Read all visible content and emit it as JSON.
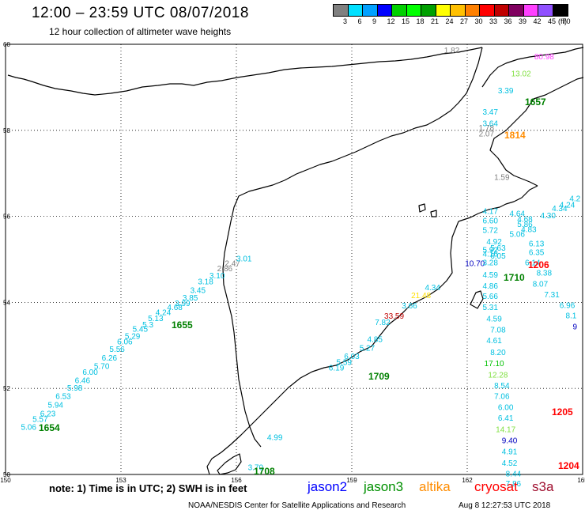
{
  "header": {
    "title": "12:00 – 23:59 UTC 08/07/2018",
    "subtitle": "12 hour collection of altimeter wave heights"
  },
  "colorbar": {
    "colors": [
      "#808080",
      "#00e0ff",
      "#00a0ff",
      "#0000ff",
      "#00d000",
      "#00ff00",
      "#00a000",
      "#ffff00",
      "#ffc000",
      "#ff8000",
      "#ff0000",
      "#c00000",
      "#800060",
      "#ff40ff",
      "#9050ff",
      "#000000"
    ],
    "labels": [
      "3",
      "6",
      "9",
      "12",
      "15",
      "18",
      "21",
      "24",
      "27",
      "30",
      "33",
      "36",
      "39",
      "42",
      "45",
      "70"
    ],
    "unit": "(ft)"
  },
  "map": {
    "lon_range": [
      150,
      165
    ],
    "lat_range": [
      50,
      60
    ],
    "x_ticks": [
      "150",
      "153",
      "156",
      "159",
      "162",
      "165"
    ],
    "y_ticks": [
      "60",
      "58",
      "56",
      "54",
      "52",
      "50"
    ],
    "grid": true
  },
  "tracks": [
    {
      "satellite": "jason3",
      "time": "1654",
      "time_color": "#008000",
      "points": [
        {
          "lon": 150.6,
          "lat": 51.04,
          "v": "5.06",
          "c": "#00c0e0"
        },
        {
          "lon": 150.9,
          "lat": 51.22,
          "v": "5.57",
          "c": "#00c0e0"
        },
        {
          "lon": 151.1,
          "lat": 51.35,
          "v": "6.23",
          "c": "#00c0e0"
        },
        {
          "lon": 151.3,
          "lat": 51.55,
          "v": "5.94",
          "c": "#00c0e0"
        },
        {
          "lon": 151.5,
          "lat": 51.76,
          "v": "6.53",
          "c": "#00c0e0"
        },
        {
          "lon": 151.8,
          "lat": 51.95,
          "v": "5.98",
          "c": "#00c0e0"
        },
        {
          "lon": 152.0,
          "lat": 52.12,
          "v": "6.46",
          "c": "#00c0e0"
        },
        {
          "lon": 152.2,
          "lat": 52.32,
          "v": "6.00",
          "c": "#00c0e0"
        },
        {
          "lon": 152.5,
          "lat": 52.45,
          "v": "5.70",
          "c": "#00c0e0"
        },
        {
          "lon": 152.7,
          "lat": 52.65,
          "v": "6.26",
          "c": "#00c0e0"
        },
        {
          "lon": 152.9,
          "lat": 52.85,
          "v": "5.56",
          "c": "#00c0e0"
        },
        {
          "lon": 153.1,
          "lat": 53.02,
          "v": "6.06",
          "c": "#00c0e0"
        },
        {
          "lon": 153.3,
          "lat": 53.15,
          "v": "5.29",
          "c": "#00c0e0"
        },
        {
          "lon": 153.5,
          "lat": 53.32,
          "v": "5.45",
          "c": "#00c0e0"
        },
        {
          "lon": 153.7,
          "lat": 53.42,
          "v": "5.3",
          "c": "#00c0e0"
        },
        {
          "lon": 153.9,
          "lat": 53.57,
          "v": "5.13",
          "c": "#00c0e0"
        },
        {
          "lon": 154.1,
          "lat": 53.7,
          "v": "4.24",
          "c": "#00c0e0"
        },
        {
          "lon": 154.4,
          "lat": 53.82,
          "v": "4.68",
          "c": "#00c0e0"
        },
        {
          "lon": 154.6,
          "lat": 53.92,
          "v": "3.99",
          "c": "#00c0e0"
        },
        {
          "lon": 154.8,
          "lat": 54.04,
          "v": "3.85",
          "c": "#00c0e0"
        },
        {
          "lon": 155.0,
          "lat": 54.22,
          "v": "3.45",
          "c": "#00c0e0"
        },
        {
          "lon": 155.2,
          "lat": 54.42,
          "v": "3.18",
          "c": "#00c0e0"
        },
        {
          "lon": 155.5,
          "lat": 54.56,
          "v": "3.10",
          "c": "#00c0e0"
        },
        {
          "lon": 155.7,
          "lat": 54.72,
          "v": "2.86",
          "c": "#808080"
        },
        {
          "lon": 155.9,
          "lat": 54.84,
          "v": "2.47",
          "c": "#808080"
        },
        {
          "lon": 156.2,
          "lat": 54.95,
          "v": "3.01",
          "c": "#00c0e0"
        }
      ]
    },
    {
      "satellite": "jason3",
      "time": "1655",
      "time_color": "#008000",
      "points": []
    },
    {
      "satellite": "jason3",
      "time": "1708",
      "time_color": "#008000",
      "points": [
        {
          "lon": 156.5,
          "lat": 50.1,
          "v": "3.70",
          "c": "#00c0e0"
        },
        {
          "lon": 157.0,
          "lat": 50.8,
          "v": "4.99",
          "c": "#00c0e0"
        }
      ]
    },
    {
      "satellite": "jason3",
      "time": "1709",
      "time_color": "#008000",
      "points": [
        {
          "lon": 158.6,
          "lat": 52.42,
          "v": "6.19",
          "c": "#00c0e0"
        },
        {
          "lon": 158.8,
          "lat": 52.55,
          "v": "5.59",
          "c": "#00c0e0"
        },
        {
          "lon": 159.0,
          "lat": 52.68,
          "v": "6.03",
          "c": "#00c0e0"
        },
        {
          "lon": 159.4,
          "lat": 52.88,
          "v": "5.27",
          "c": "#00c0e0"
        },
        {
          "lon": 159.6,
          "lat": 53.08,
          "v": "4.85",
          "c": "#00c0e0"
        },
        {
          "lon": 159.8,
          "lat": 53.47,
          "v": "7.82",
          "c": "#00c0e0"
        },
        {
          "lon": 160.1,
          "lat": 53.62,
          "v": "33.59",
          "c": "#c00000"
        },
        {
          "lon": 160.5,
          "lat": 53.86,
          "v": "3.66",
          "c": "#00c0e0"
        },
        {
          "lon": 160.8,
          "lat": 54.1,
          "v": "21.48",
          "c": "#ffe000"
        },
        {
          "lon": 161.1,
          "lat": 54.28,
          "v": "4.34",
          "c": "#00c0e0"
        }
      ]
    },
    {
      "satellite": "jason3",
      "time": "1710",
      "time_color": "#008000",
      "points": [
        {
          "lon": 162.2,
          "lat": 54.84,
          "v": "10.70",
          "c": "#0000c0"
        },
        {
          "lon": 162.6,
          "lat": 55.06,
          "v": "4.16",
          "c": "#00c0e0"
        },
        {
          "lon": 162.6,
          "lat": 55.16,
          "v": "5.92",
          "c": "#00c0e0"
        },
        {
          "lon": 162.8,
          "lat": 55.02,
          "v": "6.05",
          "c": "#00c0e0"
        },
        {
          "lon": 162.8,
          "lat": 55.2,
          "v": "5.63",
          "c": "#00c0e0"
        },
        {
          "lon": 162.7,
          "lat": 55.35,
          "v": "4.92",
          "c": "#00c0e0"
        },
        {
          "lon": 162.6,
          "lat": 55.62,
          "v": "5.72",
          "c": "#00c0e0"
        },
        {
          "lon": 162.6,
          "lat": 55.84,
          "v": "6.60",
          "c": "#00c0e0"
        },
        {
          "lon": 162.6,
          "lat": 56.06,
          "v": "4.17",
          "c": "#00c0e0"
        }
      ]
    },
    {
      "satellite": "jason3",
      "time": "1657",
      "time_color": "#008000",
      "points": [
        {
          "lon": 162.9,
          "lat": 56.85,
          "v": "1.59",
          "c": "#808080"
        },
        {
          "lon": 162.5,
          "lat": 57.86,
          "v": "2.07",
          "c": "#808080"
        },
        {
          "lon": 162.5,
          "lat": 58.0,
          "v": "1.78",
          "c": "#808080"
        },
        {
          "lon": 162.6,
          "lat": 58.1,
          "v": "3.64",
          "c": "#00c0e0"
        },
        {
          "lon": 162.6,
          "lat": 58.36,
          "v": "3.47",
          "c": "#00c0e0"
        },
        {
          "lon": 163.0,
          "lat": 58.86,
          "v": "3.39",
          "c": "#00c0e0"
        },
        {
          "lon": 163.4,
          "lat": 59.26,
          "v": "13.02",
          "c": "#80e040"
        },
        {
          "lon": 161.6,
          "lat": 59.8,
          "v": "1.82",
          "c": "#808080"
        }
      ]
    },
    {
      "satellite": "cryosat",
      "time": "1206",
      "time_color": "#ff0000",
      "points": [
        {
          "lon": 163.3,
          "lat": 56.0,
          "v": "4.64",
          "c": "#00c0e0"
        },
        {
          "lon": 163.5,
          "lat": 55.87,
          "v": "4.68",
          "c": "#00c0e0"
        },
        {
          "lon": 163.5,
          "lat": 55.75,
          "v": "5.86",
          "c": "#00c0e0"
        },
        {
          "lon": 163.6,
          "lat": 55.63,
          "v": "4.83",
          "c": "#00c0e0"
        },
        {
          "lon": 163.3,
          "lat": 55.52,
          "v": "5.06",
          "c": "#00c0e0"
        },
        {
          "lon": 163.8,
          "lat": 55.3,
          "v": "6.13",
          "c": "#00c0e0"
        },
        {
          "lon": 163.8,
          "lat": 55.1,
          "v": "6.35",
          "c": "#00c0e0"
        },
        {
          "lon": 163.7,
          "lat": 54.86,
          "v": "6.14",
          "c": "#00c0e0"
        },
        {
          "lon": 164.0,
          "lat": 54.62,
          "v": "8.38",
          "c": "#00c0e0"
        },
        {
          "lon": 163.9,
          "lat": 54.37,
          "v": "8.07",
          "c": "#00c0e0"
        },
        {
          "lon": 164.2,
          "lat": 54.12,
          "v": "7.31",
          "c": "#00c0e0"
        },
        {
          "lon": 164.6,
          "lat": 53.87,
          "v": "6.96",
          "c": "#00c0e0"
        },
        {
          "lon": 164.7,
          "lat": 53.63,
          "v": "8.1",
          "c": "#00c0e0"
        },
        {
          "lon": 164.8,
          "lat": 53.37,
          "v": "9",
          "c": "#0000c0"
        },
        {
          "lon": 164.1,
          "lat": 55.96,
          "v": "4.30",
          "c": "#00c0e0"
        },
        {
          "lon": 164.4,
          "lat": 56.12,
          "v": "4.34",
          "c": "#00c0e0"
        },
        {
          "lon": 164.6,
          "lat": 56.2,
          "v": "4.24",
          "c": "#00c0e0"
        },
        {
          "lon": 164.8,
          "lat": 56.35,
          "v": "4.2",
          "c": "#00c0e0"
        }
      ]
    },
    {
      "satellite": "cryosat",
      "time": "1205",
      "time_color": "#ff0000",
      "points": [
        {
          "lon": 162.6,
          "lat": 54.86,
          "v": "3.28",
          "c": "#00c0e0"
        },
        {
          "lon": 162.6,
          "lat": 54.58,
          "v": "4.59",
          "c": "#00c0e0"
        },
        {
          "lon": 162.6,
          "lat": 54.32,
          "v": "4.86",
          "c": "#00c0e0"
        },
        {
          "lon": 162.6,
          "lat": 54.08,
          "v": "5.66",
          "c": "#00c0e0"
        },
        {
          "lon": 162.6,
          "lat": 53.82,
          "v": "5.31",
          "c": "#00c0e0"
        },
        {
          "lon": 162.7,
          "lat": 53.56,
          "v": "4.59",
          "c": "#00c0e0"
        },
        {
          "lon": 162.8,
          "lat": 53.3,
          "v": "7.08",
          "c": "#00c0e0"
        },
        {
          "lon": 162.7,
          "lat": 53.05,
          "v": "4.61",
          "c": "#00c0e0"
        },
        {
          "lon": 162.8,
          "lat": 52.78,
          "v": "8.20",
          "c": "#00c0e0"
        },
        {
          "lon": 162.7,
          "lat": 52.52,
          "v": "17.10",
          "c": "#00c000"
        },
        {
          "lon": 162.8,
          "lat": 52.25,
          "v": "12.28",
          "c": "#80e040"
        },
        {
          "lon": 162.9,
          "lat": 52.0,
          "v": "8.54",
          "c": "#00c0e0"
        },
        {
          "lon": 162.9,
          "lat": 51.76,
          "v": "7.06",
          "c": "#00c0e0"
        },
        {
          "lon": 163.0,
          "lat": 51.5,
          "v": "6.00",
          "c": "#00c0e0"
        },
        {
          "lon": 163.0,
          "lat": 51.25,
          "v": "6.41",
          "c": "#00c0e0"
        },
        {
          "lon": 163.0,
          "lat": 50.98,
          "v": "14.17",
          "c": "#80e040"
        },
        {
          "lon": 163.1,
          "lat": 50.73,
          "v": "9.40",
          "c": "#0000c0"
        },
        {
          "lon": 163.1,
          "lat": 50.47,
          "v": "4.91",
          "c": "#00c0e0"
        },
        {
          "lon": 163.1,
          "lat": 50.2,
          "v": "4.52",
          "c": "#00c0e0"
        },
        {
          "lon": 163.2,
          "lat": 49.95,
          "v": "8.44",
          "c": "#00c0e0"
        },
        {
          "lon": 163.2,
          "lat": 49.72,
          "v": "7.86",
          "c": "#00c0e0"
        }
      ]
    },
    {
      "satellite": "cryosat",
      "time": "1204",
      "time_color": "#ff0000",
      "points": []
    },
    {
      "satellite": "altika",
      "time": "1814",
      "time_color": "#ff8c00",
      "points": []
    },
    {
      "satellite": "s3a",
      "time": "",
      "time_color": "#ff40ff",
      "points": [
        {
          "lon": 164.0,
          "lat": 59.65,
          "v": "80.98",
          "c": "#ff40ff"
        }
      ]
    }
  ],
  "legend": {
    "note": "note: 1) Time is in UTC; 2) SWH is in feet",
    "items": [
      {
        "label": "jason2",
        "color": "#0000ff"
      },
      {
        "label": "jason3",
        "color": "#009000"
      },
      {
        "label": "altika",
        "color": "#ff8c00"
      },
      {
        "label": "cryosat",
        "color": "#ff0000"
      },
      {
        "label": "s3a",
        "color": "#a01030"
      }
    ]
  },
  "footer": {
    "credit": "NOAA/NESDIS Center for Satellite Applications and Research",
    "timestamp": "Aug  8 12:27:53 UTC 2018"
  }
}
